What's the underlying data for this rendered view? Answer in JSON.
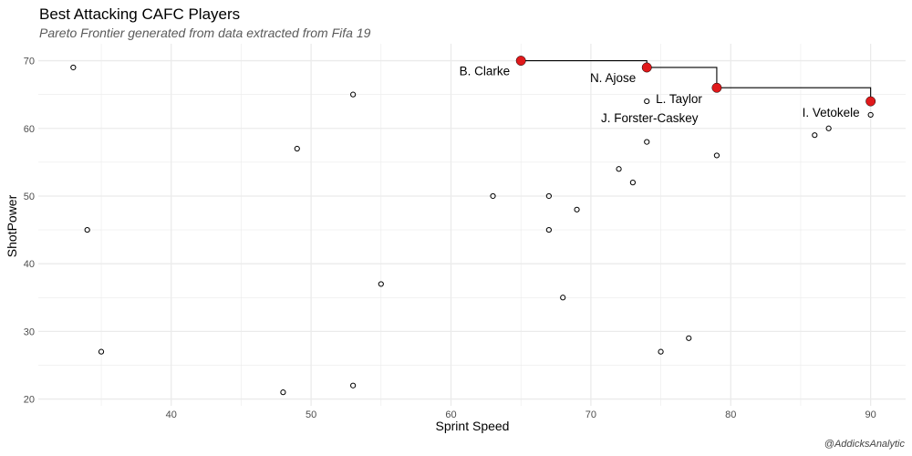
{
  "chart_data": {
    "type": "scatter",
    "title": "Best Attacking CAFC Players",
    "subtitle": "Pareto Frontier generated from data extracted from Fifa 19",
    "caption": "@AddicksAnalytic",
    "xlabel": "Sprint Speed",
    "ylabel": "ShotPower",
    "xlim": [
      30.5,
      92.5
    ],
    "ylim": [
      19,
      72.5
    ],
    "xticks": [
      40,
      50,
      60,
      70,
      80,
      90
    ],
    "yticks": [
      20,
      30,
      40,
      50,
      60,
      70
    ],
    "grid": true,
    "colors": {
      "frontier": "#e0191b",
      "points": "#000000",
      "grid": "#ebebeb"
    },
    "points": [
      {
        "x": 33,
        "y": 69
      },
      {
        "x": 34,
        "y": 45
      },
      {
        "x": 35,
        "y": 27
      },
      {
        "x": 48,
        "y": 21
      },
      {
        "x": 49,
        "y": 57
      },
      {
        "x": 53,
        "y": 65
      },
      {
        "x": 53,
        "y": 22
      },
      {
        "x": 55,
        "y": 37
      },
      {
        "x": 63,
        "y": 50
      },
      {
        "x": 67,
        "y": 50
      },
      {
        "x": 67,
        "y": 45
      },
      {
        "x": 68,
        "y": 35
      },
      {
        "x": 69,
        "y": 48
      },
      {
        "x": 72,
        "y": 54
      },
      {
        "x": 73,
        "y": 52
      },
      {
        "x": 74,
        "y": 64
      },
      {
        "x": 74,
        "y": 58
      },
      {
        "x": 75,
        "y": 27
      },
      {
        "x": 77,
        "y": 29
      },
      {
        "x": 79,
        "y": 56
      },
      {
        "x": 86,
        "y": 59
      },
      {
        "x": 87,
        "y": 60
      },
      {
        "x": 90,
        "y": 62
      }
    ],
    "frontier": [
      {
        "x": 65,
        "y": 70,
        "label": "B. Clarke"
      },
      {
        "x": 74,
        "y": 69,
        "label": "N. Ajose"
      },
      {
        "x": 79,
        "y": 66,
        "label": "L. Taylor"
      },
      {
        "x": 90,
        "y": 64,
        "label": "I. Vetokele"
      }
    ],
    "annotations": [
      {
        "x": 74,
        "y": 64,
        "label": "J. Forster-Caskey"
      }
    ]
  }
}
